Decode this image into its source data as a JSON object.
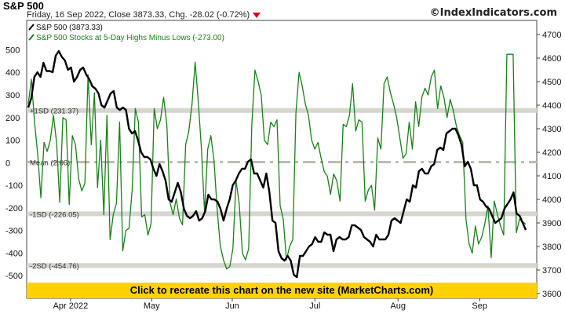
{
  "header": {
    "title": "S&P 500",
    "subtitle": "Friday, 16 Sep 2022, Close 3873.33, Chg. -28.02 (-0.72%)",
    "brand": "©IndexIndicators.com"
  },
  "banner": {
    "label": "Click to recreate this chart on the new site (MarketCharts.com)",
    "color": "#ffd200"
  },
  "colors": {
    "price": "#000000",
    "breadth": "#1a7f1a",
    "band": "#d6d6cf",
    "mean": "#bdbdb4",
    "down": "#d0021b"
  },
  "chart_data": {
    "type": "line",
    "legend": {
      "placement": "top-left",
      "entries": [
        "S&P 500 (3873.33)",
        "S&P 500 Stocks at 5-Day Highs Minus Lows (-273.00)"
      ]
    },
    "x_ticks": [
      "Apr 2022",
      "May",
      "Jun",
      "Jul",
      "Aug",
      "Sep"
    ],
    "left_axis": {
      "ticks": [
        500,
        400,
        300,
        200,
        100,
        0,
        -100,
        -200,
        -300,
        -400,
        -500
      ],
      "ylim": [
        -600,
        630
      ]
    },
    "right_axis": {
      "ticks": [
        4700,
        4600,
        4500,
        4400,
        4300,
        4200,
        4100,
        4000,
        3900,
        3800,
        3700,
        3600
      ],
      "ylim": [
        3580,
        4760
      ]
    },
    "bands": [
      {
        "label": "+1SD (231.37)",
        "value": 231.37
      },
      {
        "label": "Mean (2.66)",
        "value": 2.66
      },
      {
        "label": "-1SD (-226.05)",
        "value": -226.05
      },
      {
        "label": "-2SD (-454.76)",
        "value": -454.76
      }
    ],
    "series": [
      {
        "name": "S&P 500 (3873.33)",
        "axis": "right",
        "values": [
          4390,
          4430,
          4520,
          4540,
          4520,
          4580,
          4545,
          4545,
          4540,
          4610,
          4630,
          4605,
          4590,
          4550,
          4560,
          4500,
          4520,
          4550,
          4560,
          4530,
          4510,
          4480,
          4470,
          4450,
          4400,
          4390,
          4420,
          4450,
          4460,
          4390,
          4380,
          4390,
          4380,
          4300,
          4280,
          4290,
          4250,
          4200,
          4180,
          4180,
          4170,
          4130,
          4100,
          4150,
          4120,
          4080,
          4000,
          3990,
          4030,
          4070,
          4030,
          3960,
          3930,
          3920,
          3930,
          3950,
          3910,
          3920,
          3950,
          4020,
          4000,
          4000,
          3990,
          3960,
          3910,
          3960,
          4000,
          4060,
          4080,
          4110,
          4130,
          4130,
          4160,
          4170,
          4110,
          4110,
          4080,
          4050,
          4110,
          4030,
          3910,
          3900,
          3780,
          3750,
          3740,
          3760,
          3740,
          3680,
          3670,
          3760,
          3760,
          3780,
          3800,
          3810,
          3840,
          3820,
          3820,
          3860,
          3850,
          3850,
          3780,
          3830,
          3840,
          3830,
          3830,
          3840,
          3890,
          3890,
          3880,
          3870,
          3840,
          3830,
          3820,
          3800,
          3850,
          3830,
          3830,
          3830,
          3850,
          3910,
          3920,
          3910,
          3900,
          3950,
          4000,
          3990,
          4060,
          4050,
          4120,
          4130,
          4110,
          4110,
          4140,
          4150,
          4210,
          4220,
          4210,
          4280,
          4290,
          4300,
          4300,
          4270,
          4230,
          4140,
          4160,
          4130,
          4060,
          4060,
          4000,
          3990,
          3970,
          3960,
          3930,
          3900,
          3910,
          3920,
          3960,
          3980,
          4000,
          4030,
          3940,
          3930,
          3900,
          3870
        ],
        "color": "#000000"
      },
      {
        "name": "S&P 500 Stocks at 5-Day Highs Minus Lows (-273.00)",
        "axis": "left",
        "values": [
          260,
          370,
          180,
          40,
          -155,
          90,
          50,
          100,
          210,
          90,
          -175,
          200,
          190,
          -185,
          120,
          80,
          -70,
          -125,
          -90,
          390,
          80,
          310,
          -110,
          100,
          -230,
          210,
          -340,
          -230,
          -180,
          180,
          -390,
          -300,
          -290,
          -120,
          240,
          180,
          -240,
          -230,
          -320,
          -270,
          240,
          150,
          190,
          290,
          170,
          -175,
          -230,
          -160,
          -245,
          -275,
          80,
          140,
          260,
          445,
          270,
          60,
          -220,
          60,
          120,
          10,
          -210,
          -370,
          -430,
          -470,
          -460,
          -380,
          -80,
          -180,
          -400,
          -430,
          -380,
          170,
          410,
          360,
          300,
          100,
          80,
          180,
          160,
          190,
          -190,
          -250,
          -430,
          -370,
          -340,
          220,
          400,
          340,
          260,
          210,
          100,
          60,
          90,
          20,
          -40,
          -60,
          -140,
          -50,
          -80,
          -170,
          170,
          160,
          210,
          350,
          140,
          190,
          180,
          -170,
          -120,
          -100,
          -210,
          110,
          60,
          350,
          380,
          310,
          260,
          200,
          110,
          20,
          40,
          180,
          60,
          270,
          160,
          290,
          330,
          300,
          380,
          410,
          240,
          340,
          290,
          200,
          280,
          230,
          160,
          120,
          90,
          -250,
          -360,
          -400,
          -280,
          -360,
          -330,
          -270,
          -190,
          -420,
          -170,
          -230,
          -280,
          -320,
          480,
          480,
          480,
          -310,
          -250,
          -260,
          -273
        ],
        "color": "#1a7f1a"
      }
    ]
  }
}
